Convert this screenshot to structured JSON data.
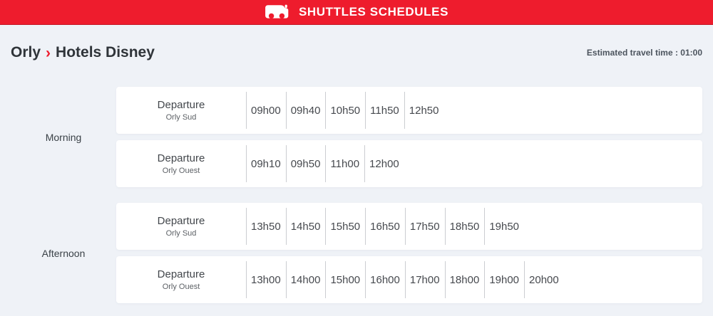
{
  "header": {
    "title": "SHUTTLES SCHEDULES",
    "icon": "bus-icon"
  },
  "route": {
    "from": "Orly",
    "separator": "›",
    "to": "Hotels Disney"
  },
  "travel_time": {
    "label": "Estimated travel time : 01:00"
  },
  "colors": {
    "accent_red": "#ee1c2d",
    "page_background": "#eff2f7",
    "card_background": "#ffffff",
    "divider": "#cbcdd1"
  },
  "sections": [
    {
      "label": "Morning",
      "rows": [
        {
          "title": "Departure",
          "subtitle": "Orly Sud",
          "times": [
            "09h00",
            "09h40",
            "10h50",
            "11h50",
            "12h50"
          ]
        },
        {
          "title": "Departure",
          "subtitle": "Orly Ouest",
          "times": [
            "09h10",
            "09h50",
            "11h00",
            "12h00"
          ]
        }
      ]
    },
    {
      "label": "Afternoon",
      "rows": [
        {
          "title": "Departure",
          "subtitle": "Orly Sud",
          "times": [
            "13h50",
            "14h50",
            "15h50",
            "16h50",
            "17h50",
            "18h50",
            "19h50"
          ]
        },
        {
          "title": "Departure",
          "subtitle": "Orly Ouest",
          "times": [
            "13h00",
            "14h00",
            "15h00",
            "16h00",
            "17h00",
            "18h00",
            "19h00",
            "20h00"
          ]
        }
      ]
    }
  ]
}
